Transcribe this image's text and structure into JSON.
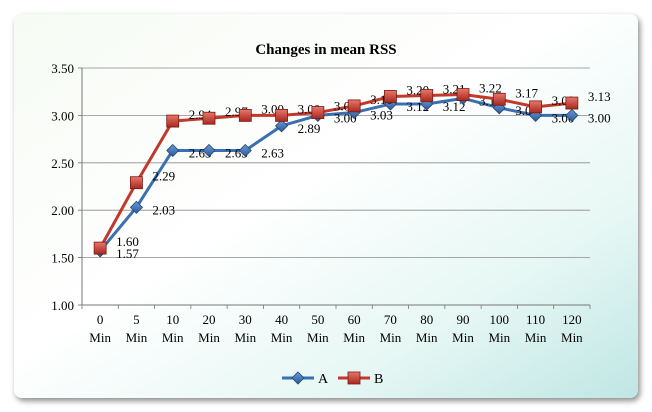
{
  "chart_data": {
    "type": "line",
    "title": "Changes in mean RSS",
    "xlabel": "",
    "ylabel": "",
    "ylim": [
      1.0,
      3.5
    ],
    "yticks": [
      "1.00",
      "1.50",
      "2.00",
      "2.50",
      "3.00",
      "3.50"
    ],
    "categories": [
      [
        "0",
        "Min"
      ],
      [
        "5",
        "Min"
      ],
      [
        "10",
        "Min"
      ],
      [
        "20",
        "Min"
      ],
      [
        "30",
        "Min"
      ],
      [
        "40",
        "Min"
      ],
      [
        "50",
        "Min"
      ],
      [
        "60",
        "Min"
      ],
      [
        "70",
        "Min"
      ],
      [
        "80",
        "Min"
      ],
      [
        "90",
        "Min"
      ],
      [
        "100",
        "Min"
      ],
      [
        "110",
        "Min"
      ],
      [
        "120",
        "Min"
      ]
    ],
    "series": [
      {
        "name": "A",
        "color": "#3a6fb0",
        "marker": "diamond",
        "values": [
          1.57,
          2.03,
          2.63,
          2.63,
          2.63,
          2.89,
          3.0,
          3.03,
          3.12,
          3.12,
          3.18,
          3.08,
          3.0,
          3.0
        ],
        "labels": [
          "1.57",
          "2.03",
          "2.63",
          "2.63",
          "2.63",
          "2.89",
          "3.00",
          "3.03",
          "3.12",
          "3.12",
          "3.18",
          "3.08",
          "3.00",
          "3.00"
        ]
      },
      {
        "name": "B",
        "color": "#c0392b",
        "marker": "square",
        "values": [
          1.6,
          2.29,
          2.94,
          2.97,
          3.0,
          3.0,
          3.03,
          3.1,
          3.2,
          3.21,
          3.22,
          3.17,
          3.09,
          3.13
        ],
        "labels": [
          "1.60",
          "2.29",
          "2.94",
          "2.97",
          "3.00",
          "3.00",
          "3.03",
          "3.10",
          "3.20",
          "3.21",
          "3.22",
          "3.17",
          "3.09",
          "3.13"
        ]
      }
    ],
    "grid": true,
    "legend": "bottom"
  }
}
